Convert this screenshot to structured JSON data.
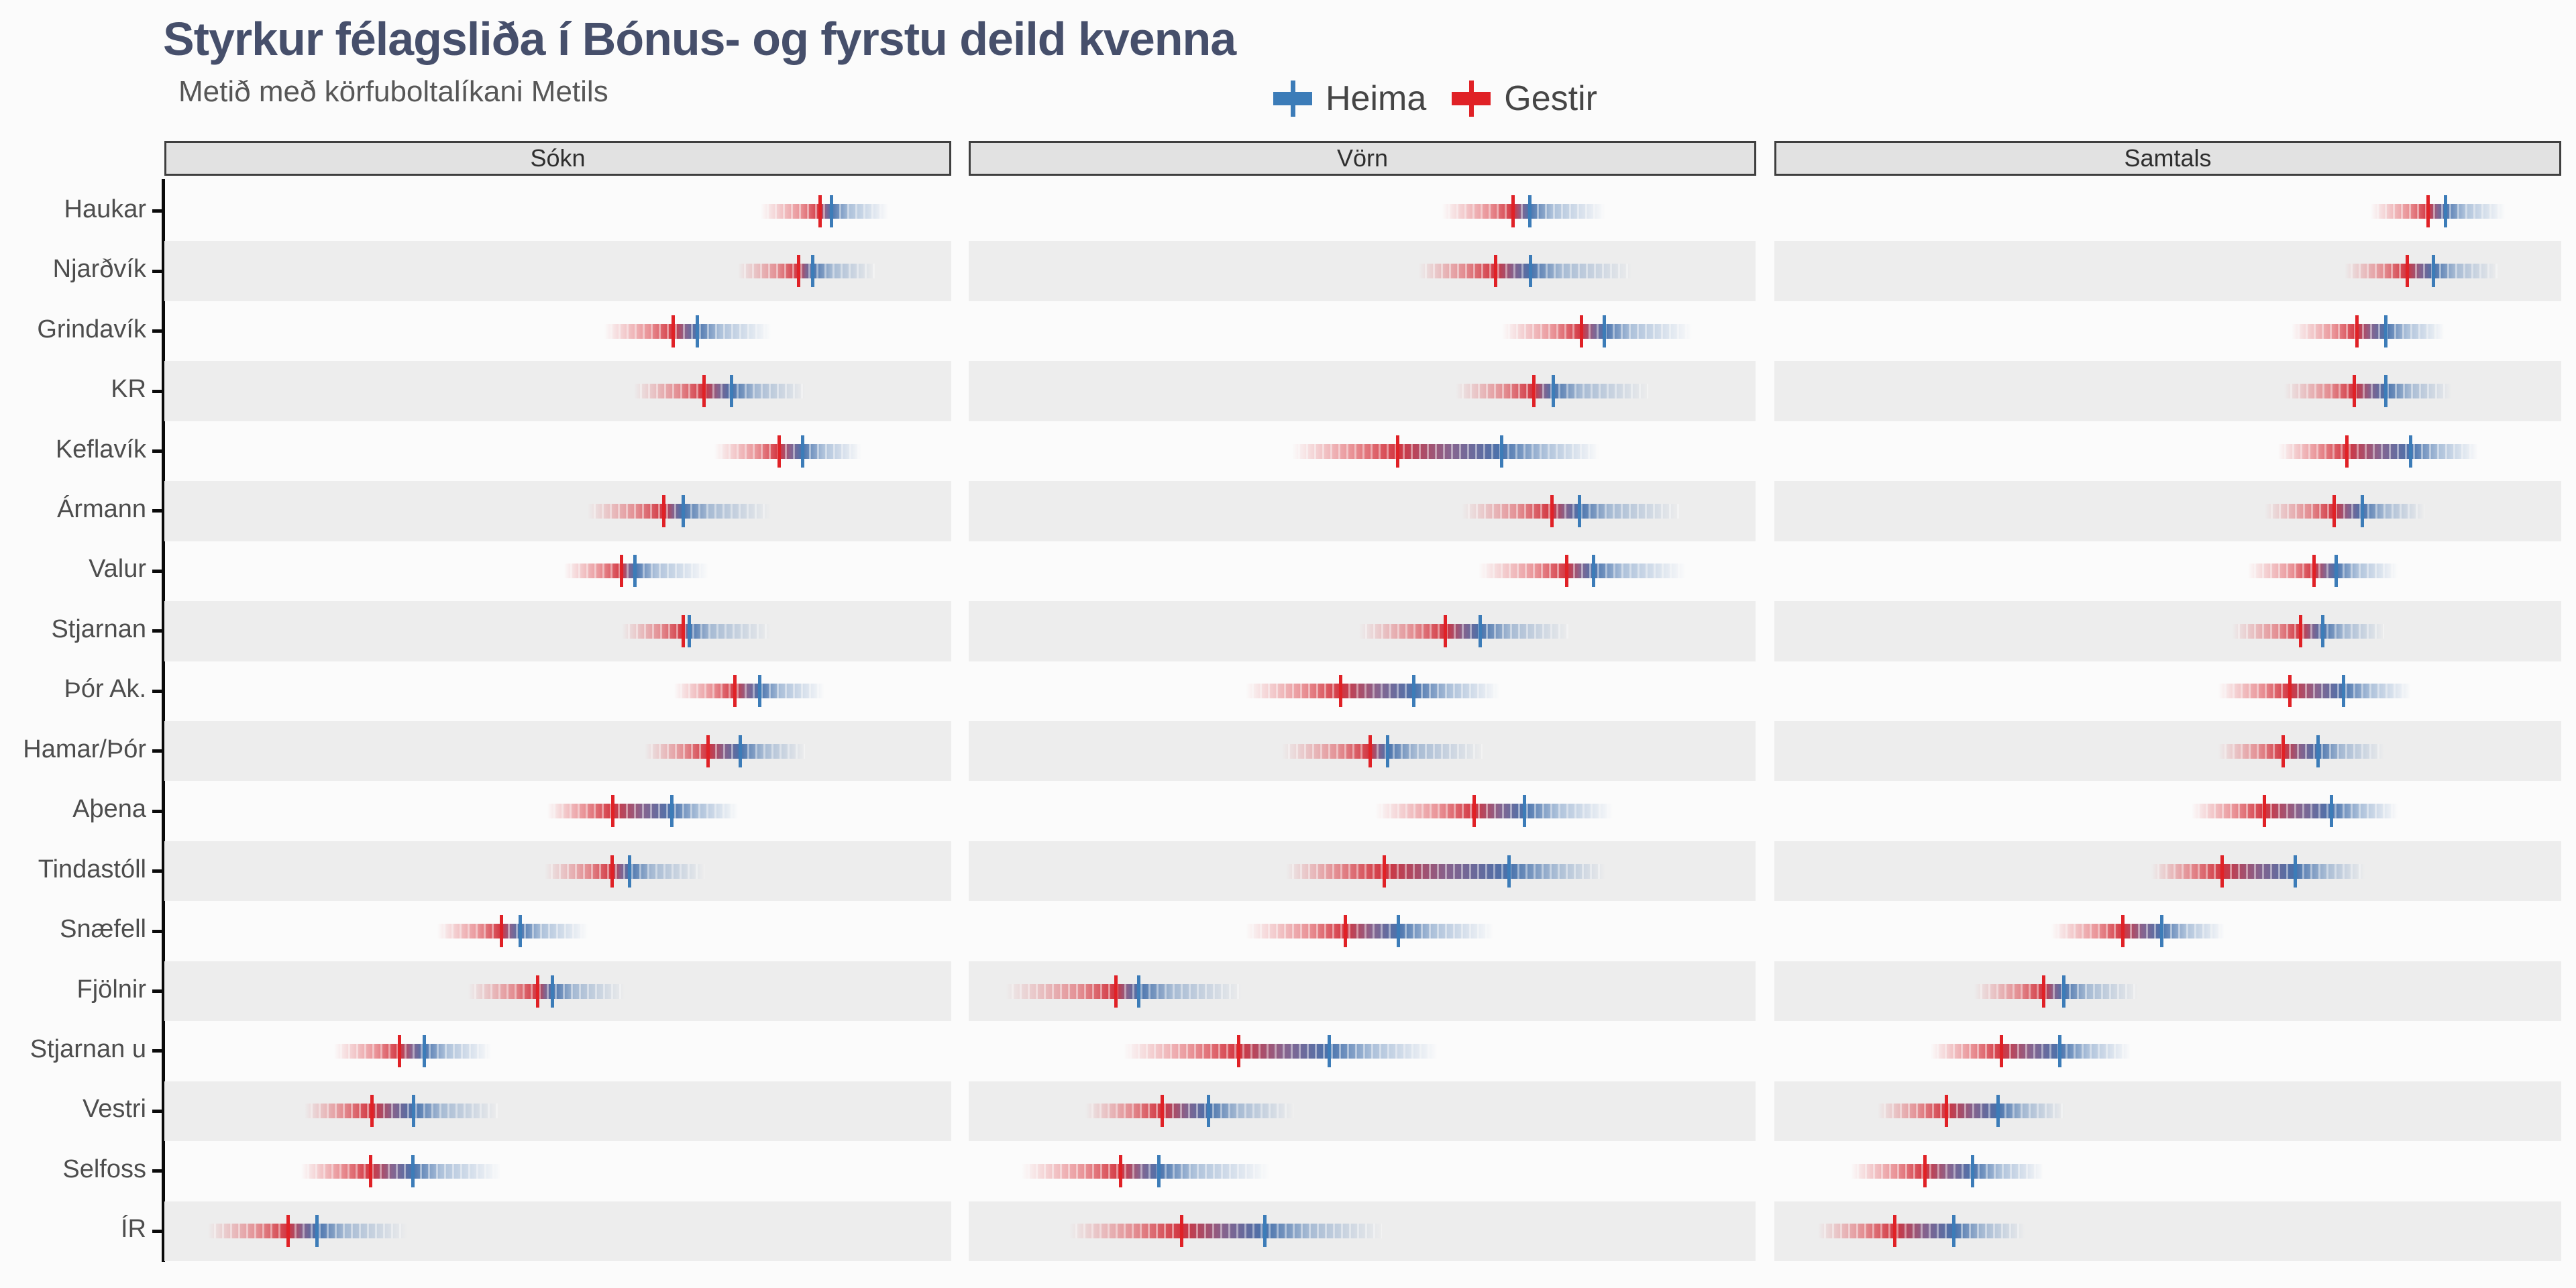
{
  "title": "Styrkur félagsliða í Bónus- og fyrstu deild kvenna",
  "subtitle": "Metið með körfuboltalíkani Metils",
  "legend": {
    "items": [
      {
        "label": "Heima",
        "color": "#3c7cb8"
      },
      {
        "label": "Gestir",
        "color": "#e02126"
      }
    ]
  },
  "panel_headers": [
    "Sókn",
    "Vörn",
    "Samtals"
  ],
  "colors": {
    "heima": "#3c7cb8",
    "gestir": "#e02126",
    "background": "#fbfbfb",
    "row_stripe": "#ededed",
    "strip_fill": "#e2e2e2",
    "strip_border": "#3f3f3f",
    "title": "#464f6b",
    "subtitle": "#575757",
    "axis_label": "#4d4d4d",
    "axis_line": "#0a0a0a"
  },
  "chart_data": {
    "type": "interval-dotplot",
    "title": "Styrkur félagsliða í Bónus- og fyrstu deild kvenna",
    "subtitle": "Metið með körfuboltalíkani Metils",
    "facets": [
      "Sókn",
      "Vörn",
      "Samtals"
    ],
    "series": [
      {
        "name": "Heima",
        "color": "#3c7cb8"
      },
      {
        "name": "Gestir",
        "color": "#e02126"
      }
    ],
    "legend_position": "top",
    "grid": false,
    "scale_note": "No numeric axis labels in original; gestir/heima marker positions and uncertainty band extents are estimated as percent of facet width (0-100, left = weaker, right = stronger)",
    "teams": [
      {
        "name": "Haukar",
        "facets": [
          {
            "gestir": 83.3,
            "heima": 84.8,
            "band": [
              75.8,
              92.0
            ]
          },
          {
            "gestir": 69.2,
            "heima": 71.3,
            "band": [
              60.2,
              80.9
            ]
          },
          {
            "gestir": 83.1,
            "heima": 85.3,
            "band": [
              75.8,
              92.8
            ]
          }
        ]
      },
      {
        "name": "Njarðvík",
        "facets": [
          {
            "gestir": 80.6,
            "heima": 82.4,
            "band": [
              72.9,
              90.3
            ]
          },
          {
            "gestir": 67.0,
            "heima": 71.4,
            "band": [
              57.2,
              84.3
            ]
          },
          {
            "gestir": 80.4,
            "heima": 83.8,
            "band": [
              72.5,
              91.9
            ]
          }
        ]
      },
      {
        "name": "Grindavík",
        "facets": [
          {
            "gestir": 64.7,
            "heima": 67.7,
            "band": [
              55.9,
              77.1
            ]
          },
          {
            "gestir": 77.9,
            "heima": 80.8,
            "band": [
              67.8,
              91.9
            ]
          },
          {
            "gestir": 74.0,
            "heima": 77.7,
            "band": [
              65.7,
              85.2
            ]
          }
        ]
      },
      {
        "name": "KR",
        "facets": [
          {
            "gestir": 68.6,
            "heima": 72.1,
            "band": [
              59.7,
              81.4
            ]
          },
          {
            "gestir": 71.8,
            "heima": 74.3,
            "band": [
              61.9,
              86.4
            ]
          },
          {
            "gestir": 73.7,
            "heima": 77.7,
            "band": [
              64.8,
              86.0
            ]
          }
        ]
      },
      {
        "name": "Keflavík",
        "facets": [
          {
            "gestir": 78.1,
            "heima": 81.1,
            "band": [
              69.9,
              88.6
            ]
          },
          {
            "gestir": 54.5,
            "heima": 67.7,
            "band": [
              41.1,
              80.1
            ]
          },
          {
            "gestir": 72.8,
            "heima": 80.9,
            "band": [
              64.0,
              89.4
            ]
          }
        ]
      },
      {
        "name": "Ármann",
        "facets": [
          {
            "gestir": 63.5,
            "heima": 65.9,
            "band": [
              53.8,
              77.1
            ]
          },
          {
            "gestir": 74.1,
            "heima": 77.6,
            "band": [
              62.7,
              90.3
            ]
          },
          {
            "gestir": 71.1,
            "heima": 74.7,
            "band": [
              62.3,
              82.6
            ]
          }
        ]
      },
      {
        "name": "Valur",
        "facets": [
          {
            "gestir": 58.1,
            "heima": 59.8,
            "band": [
              50.8,
              69.1
            ]
          },
          {
            "gestir": 76.0,
            "heima": 79.4,
            "band": [
              64.8,
              91.1
            ]
          },
          {
            "gestir": 68.6,
            "heima": 71.4,
            "band": [
              60.2,
              79.2
            ]
          }
        ]
      },
      {
        "name": "Stjarnan",
        "facets": [
          {
            "gestir": 65.9,
            "heima": 66.7,
            "band": [
              58.1,
              77.1
            ]
          },
          {
            "gestir": 60.6,
            "heima": 65.0,
            "band": [
              49.6,
              76.3
            ]
          },
          {
            "gestir": 66.9,
            "heima": 69.7,
            "band": [
              58.1,
              77.5
            ]
          }
        ]
      },
      {
        "name": "Þór Ak.",
        "facets": [
          {
            "gestir": 72.5,
            "heima": 75.7,
            "band": [
              64.8,
              83.9
            ]
          },
          {
            "gestir": 47.3,
            "heima": 56.6,
            "band": [
              35.2,
              67.4
            ]
          },
          {
            "gestir": 65.5,
            "heima": 72.3,
            "band": [
              56.4,
              80.9
            ]
          }
        ]
      },
      {
        "name": "Hamar/Þór",
        "facets": [
          {
            "gestir": 69.1,
            "heima": 73.2,
            "band": [
              61.0,
              81.4
            ]
          },
          {
            "gestir": 51.0,
            "heima": 53.2,
            "band": [
              39.8,
              65.3
            ]
          },
          {
            "gestir": 64.7,
            "heima": 69.1,
            "band": [
              56.4,
              77.5
            ]
          }
        ]
      },
      {
        "name": "Aþena",
        "facets": [
          {
            "gestir": 57.0,
            "heima": 64.5,
            "band": [
              48.7,
              72.9
            ]
          },
          {
            "gestir": 64.2,
            "heima": 70.6,
            "band": [
              51.7,
              81.8
            ]
          },
          {
            "gestir": 62.3,
            "heima": 70.8,
            "band": [
              53.0,
              79.2
            ]
          }
        ]
      },
      {
        "name": "Tindastóll",
        "facets": [
          {
            "gestir": 56.9,
            "heima": 59.1,
            "band": [
              48.3,
              68.6
            ]
          },
          {
            "gestir": 52.8,
            "heima": 68.7,
            "band": [
              40.3,
              80.9
            ]
          },
          {
            "gestir": 56.9,
            "heima": 66.2,
            "band": [
              47.9,
              75.0
            ]
          }
        ]
      },
      {
        "name": "Snæfell",
        "facets": [
          {
            "gestir": 42.8,
            "heima": 45.2,
            "band": [
              34.7,
              53.8
            ]
          },
          {
            "gestir": 47.9,
            "heima": 54.6,
            "band": [
              35.2,
              66.7
            ]
          },
          {
            "gestir": 44.3,
            "heima": 49.2,
            "band": [
              35.2,
              57.2
            ]
          }
        ]
      },
      {
        "name": "Fjölnir",
        "facets": [
          {
            "gestir": 47.4,
            "heima": 49.3,
            "band": [
              38.6,
              58.5
            ]
          },
          {
            "gestir": 18.7,
            "heima": 21.6,
            "band": [
              4.7,
              34.7
            ]
          },
          {
            "gestir": 34.2,
            "heima": 36.8,
            "band": [
              25.4,
              46.2
            ]
          }
        ]
      },
      {
        "name": "Stjarnan u",
        "facets": [
          {
            "gestir": 29.9,
            "heima": 33.0,
            "band": [
              21.6,
              41.5
            ]
          },
          {
            "gestir": 34.3,
            "heima": 45.8,
            "band": [
              19.7,
              59.6
            ]
          },
          {
            "gestir": 28.9,
            "heima": 36.3,
            "band": [
              19.9,
              45.3
            ]
          }
        ]
      },
      {
        "name": "Vestri",
        "facets": [
          {
            "gestir": 26.4,
            "heima": 31.7,
            "band": [
              17.8,
              42.4
            ]
          },
          {
            "gestir": 24.6,
            "heima": 30.5,
            "band": [
              14.8,
              41.3
            ]
          },
          {
            "gestir": 21.9,
            "heima": 28.4,
            "band": [
              13.1,
              36.9
            ]
          }
        ]
      },
      {
        "name": "Selfoss",
        "facets": [
          {
            "gestir": 26.2,
            "heima": 31.6,
            "band": [
              17.4,
              42.8
            ]
          },
          {
            "gestir": 19.3,
            "heima": 24.2,
            "band": [
              6.7,
              38.2
            ]
          },
          {
            "gestir": 19.1,
            "heima": 25.2,
            "band": [
              9.7,
              34.3
            ]
          }
        ]
      },
      {
        "name": "ÍR",
        "facets": [
          {
            "gestir": 15.7,
            "heima": 19.4,
            "band": [
              5.5,
              30.9
            ]
          },
          {
            "gestir": 27.1,
            "heima": 37.6,
            "band": [
              12.8,
              52.5
            ]
          },
          {
            "gestir": 15.3,
            "heima": 22.8,
            "band": [
              5.5,
              31.8
            ]
          }
        ]
      }
    ]
  }
}
